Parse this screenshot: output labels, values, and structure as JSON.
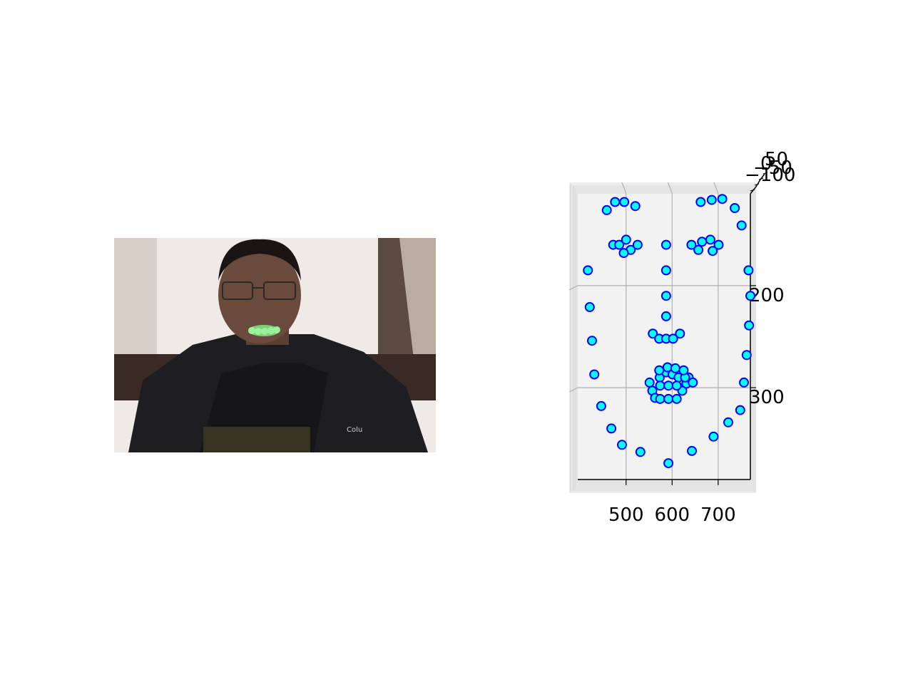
{
  "photo": {
    "description_icon": "person-photo",
    "jacket_logo_text": "Colu",
    "mouth_marker_color": "#7de07d"
  },
  "chart_data": {
    "type": "scatter",
    "projection": "3d",
    "title": "",
    "xlabel": "",
    "ylabel": "",
    "zlabel": "",
    "xlim": [
      395,
      770
    ],
    "ylim": [
      110,
      390
    ],
    "x_ticks": [
      500,
      600,
      700
    ],
    "x_tick_labels": [
      "500",
      "600",
      "700"
    ],
    "y_ticks": [
      200,
      300
    ],
    "y_tick_labels": [
      "200",
      "300"
    ],
    "z_tick_labels": [
      "−100",
      "−50",
      "0",
      "50"
    ],
    "grid": true,
    "marker_face_color": "#00ffff",
    "marker_edge_color": "#0000ff",
    "pane_color": "#f2f2f2",
    "series": [
      {
        "points": [
          [
            417,
            185
          ],
          [
            421,
            221
          ],
          [
            426,
            254
          ],
          [
            431,
            287
          ],
          [
            446,
            318
          ],
          [
            468,
            340
          ],
          [
            491,
            356
          ],
          [
            531,
            363
          ],
          [
            592,
            374
          ],
          [
            643,
            362
          ],
          [
            690,
            348
          ],
          [
            722,
            334
          ],
          [
            748,
            322
          ],
          [
            756,
            295
          ],
          [
            762,
            268
          ],
          [
            767,
            239
          ],
          [
            770,
            210
          ],
          [
            766,
            185
          ],
          [
            751,
            141
          ],
          [
            736,
            124
          ],
          [
            709,
            115
          ],
          [
            686,
            116
          ],
          [
            662,
            118
          ],
          [
            458,
            126
          ],
          [
            476,
            118
          ],
          [
            496,
            118
          ],
          [
            520,
            122
          ],
          [
            472,
            160
          ],
          [
            485,
            160
          ],
          [
            500,
            155
          ],
          [
            510,
            165
          ],
          [
            495,
            168
          ],
          [
            525,
            160
          ],
          [
            587,
            160
          ],
          [
            587,
            185
          ],
          [
            587,
            210
          ],
          [
            587,
            230
          ],
          [
            558,
            247
          ],
          [
            572,
            252
          ],
          [
            587,
            252
          ],
          [
            602,
            252
          ],
          [
            617,
            247
          ],
          [
            551,
            295
          ],
          [
            557,
            303
          ],
          [
            563,
            310
          ],
          [
            574,
            311
          ],
          [
            592,
            311
          ],
          [
            610,
            311
          ],
          [
            622,
            303
          ],
          [
            631,
            296
          ],
          [
            636,
            290
          ],
          [
            645,
            295
          ],
          [
            573,
            290
          ],
          [
            587,
            285
          ],
          [
            601,
            287
          ],
          [
            614,
            290
          ],
          [
            628,
            290
          ],
          [
            574,
            298
          ],
          [
            592,
            298
          ],
          [
            610,
            298
          ],
          [
            642,
            160
          ],
          [
            657,
            165
          ],
          [
            665,
            157
          ],
          [
            683,
            155
          ],
          [
            701,
            160
          ],
          [
            688,
            166
          ],
          [
            572,
            283
          ],
          [
            590,
            280
          ],
          [
            607,
            281
          ],
          [
            625,
            283
          ]
        ]
      }
    ]
  }
}
